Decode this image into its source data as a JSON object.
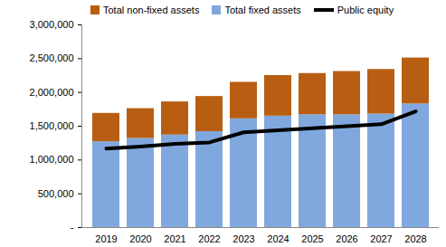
{
  "chart_data": {
    "type": "bar",
    "stacked": true,
    "categories": [
      "2019",
      "2020",
      "2021",
      "2022",
      "2023",
      "2024",
      "2025",
      "2026",
      "2027",
      "2028"
    ],
    "series": [
      {
        "name": "Total non-fixed assets",
        "type": "bar",
        "color": "#b85e12",
        "values": [
          420000,
          440000,
          490000,
          520000,
          540000,
          600000,
          610000,
          640000,
          660000,
          680000
        ]
      },
      {
        "name": "Total fixed assets",
        "type": "bar",
        "color": "#80a8de",
        "values": [
          1270000,
          1320000,
          1370000,
          1420000,
          1610000,
          1650000,
          1670000,
          1670000,
          1680000,
          1830000
        ]
      },
      {
        "name": "Public equity",
        "type": "line",
        "color": "#000000",
        "values": [
          1170000,
          1200000,
          1240000,
          1260000,
          1410000,
          1440000,
          1470000,
          1500000,
          1530000,
          1720000
        ]
      }
    ],
    "ylim": [
      0,
      3000000
    ],
    "yticks": [
      {
        "value": 0,
        "label": "-"
      },
      {
        "value": 500000,
        "label": "500,000"
      },
      {
        "value": 1000000,
        "label": "1,000,000"
      },
      {
        "value": 1500000,
        "label": "1,500,000"
      },
      {
        "value": 2000000,
        "label": "2,000,000"
      },
      {
        "value": 2500000,
        "label": "2,500,000"
      },
      {
        "value": 3000000,
        "label": "3,000,000"
      }
    ],
    "grid": false,
    "legend": "top"
  }
}
